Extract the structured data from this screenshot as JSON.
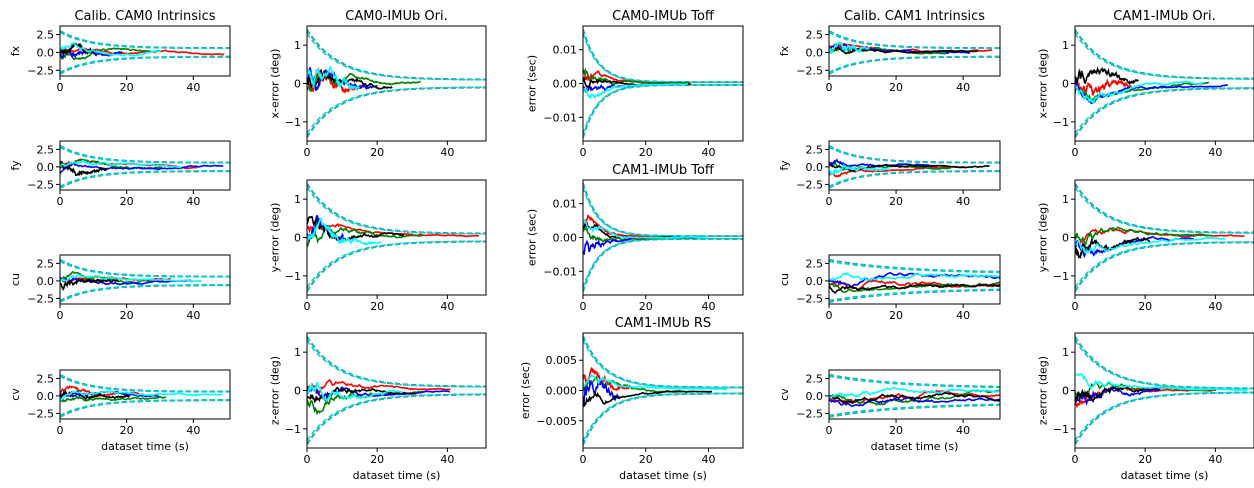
{
  "colors": {
    "bound_outer": "#00ced1",
    "bound_inner": "#000000",
    "series": [
      "#ff0000",
      "#008000",
      "#0000ff",
      "#000000",
      "#00ffff"
    ]
  },
  "chart_data": [
    {
      "id": "c0_r0",
      "type": "line",
      "title": "Calib. CAM0 Intrinsics",
      "ylabel": "fx",
      "xlabel": "",
      "ylim": [
        -3.3,
        3.7
      ],
      "yticks": [
        -2.5,
        0.0,
        2.5
      ],
      "yticklabels": [
        "−2.5",
        "0.0",
        "2.5"
      ],
      "xlim": [
        0,
        51
      ],
      "xticks": [
        0,
        20,
        40
      ],
      "xticklabels": [
        "0",
        "20",
        "40"
      ],
      "bound_start": 3.0,
      "bound_end": 0.6,
      "curve": "pos"
    },
    {
      "id": "c0_r1",
      "type": "line",
      "title": "",
      "ylabel": "fy",
      "xlabel": "",
      "ylim": [
        -3.3,
        3.7
      ],
      "yticks": [
        -2.5,
        0.0,
        2.5
      ],
      "yticklabels": [
        "−2.5",
        "0.0",
        "2.5"
      ],
      "xlim": [
        0,
        51
      ],
      "xticks": [
        0,
        20,
        40
      ],
      "xticklabels": [
        "0",
        "20",
        "40"
      ],
      "bound_start": 3.0,
      "bound_end": 0.6,
      "curve": "pos"
    },
    {
      "id": "c0_r2",
      "type": "line",
      "title": "",
      "ylabel": "cu",
      "xlabel": "",
      "ylim": [
        -3.3,
        3.7
      ],
      "yticks": [
        -2.5,
        0.0,
        2.5
      ],
      "yticklabels": [
        "−2.5",
        "0.0",
        "2.5"
      ],
      "xlim": [
        0,
        51
      ],
      "xticks": [
        0,
        20,
        40
      ],
      "xticklabels": [
        "0",
        "20",
        "40"
      ],
      "bound_start": 3.0,
      "bound_end": 0.6,
      "curve": "pos"
    },
    {
      "id": "c0_r3",
      "type": "line",
      "title": "",
      "ylabel": "cv",
      "xlabel": "dataset time (s)",
      "ylim": [
        -3.3,
        3.7
      ],
      "yticks": [
        -2.5,
        0.0,
        2.5
      ],
      "yticklabels": [
        "−2.5",
        "0.0",
        "2.5"
      ],
      "xlim": [
        0,
        51
      ],
      "xticks": [
        0,
        20,
        40
      ],
      "xticklabels": [
        "0",
        "20",
        "40"
      ],
      "bound_start": 3.0,
      "bound_end": 0.6,
      "curve": "pos"
    },
    {
      "id": "c1_r0",
      "type": "line",
      "title": "CAM0-IMUb Ori.",
      "ylabel": "x-error (deg)",
      "xlabel": "",
      "ylim": [
        -1.5,
        1.5
      ],
      "yticks": [
        -1,
        0,
        1
      ],
      "yticklabels": [
        "−1",
        "0",
        "1"
      ],
      "xlim": [
        0,
        51
      ],
      "xticks": [
        0,
        20,
        40
      ],
      "xticklabels": [
        "0",
        "20",
        "40"
      ],
      "bound_start": 1.4,
      "bound_end": 0.1,
      "curve": "ori"
    },
    {
      "id": "c1_r1",
      "type": "line",
      "title": "",
      "ylabel": "y-error (deg)",
      "xlabel": "",
      "ylim": [
        -1.5,
        1.5
      ],
      "yticks": [
        -1,
        0,
        1
      ],
      "yticklabels": [
        "−1",
        "0",
        "1"
      ],
      "xlim": [
        0,
        51
      ],
      "xticks": [
        0,
        20,
        40
      ],
      "xticklabels": [
        "0",
        "20",
        "40"
      ],
      "bound_start": 1.4,
      "bound_end": 0.1,
      "curve": "ori"
    },
    {
      "id": "c1_r2",
      "type": "line",
      "title": "",
      "ylabel": "z-error (deg)",
      "xlabel": "dataset time (s)",
      "ylim": [
        -1.5,
        1.5
      ],
      "yticks": [
        -1,
        0,
        1
      ],
      "yticklabels": [
        "−1",
        "0",
        "1"
      ],
      "xlim": [
        0,
        51
      ],
      "xticks": [
        0,
        20,
        40
      ],
      "xticklabels": [
        "0",
        "20",
        "40"
      ],
      "bound_start": 1.4,
      "bound_end": 0.1,
      "curve": "ori"
    },
    {
      "id": "c2_r0",
      "type": "line",
      "title": "CAM0-IMUb Toff",
      "ylabel": "error (sec)",
      "xlabel": "",
      "ylim": [
        -0.017,
        0.017
      ],
      "yticks": [
        -0.01,
        0.0,
        0.01
      ],
      "yticklabels": [
        "−0.01",
        "0.00",
        "0.01"
      ],
      "xlim": [
        0,
        51
      ],
      "xticks": [
        0,
        20,
        40
      ],
      "xticklabels": [
        "0",
        "20",
        "40"
      ],
      "bound_start": 0.016,
      "bound_end": 0.0004,
      "curve": "toff"
    },
    {
      "id": "c2_r1",
      "type": "line",
      "title": "CAM1-IMUb Toff",
      "ylabel": "error (sec)",
      "xlabel": "",
      "ylim": [
        -0.017,
        0.017
      ],
      "yticks": [
        -0.01,
        0.0,
        0.01
      ],
      "yticklabels": [
        "−0.01",
        "0.00",
        "0.01"
      ],
      "xlim": [
        0,
        51
      ],
      "xticks": [
        0,
        20,
        40
      ],
      "xticklabels": [
        "0",
        "20",
        "40"
      ],
      "bound_start": 0.016,
      "bound_end": 0.0004,
      "curve": "toff"
    },
    {
      "id": "c2_r2",
      "type": "line",
      "title": "CAM1-IMUb RS",
      "ylabel": "error (sec)",
      "xlabel": "dataset time (s)",
      "ylim": [
        -0.0095,
        0.0095
      ],
      "yticks": [
        -0.005,
        0.0,
        0.005
      ],
      "yticklabels": [
        "−0.005",
        "0.000",
        "0.005"
      ],
      "xlim": [
        0,
        51
      ],
      "xticks": [
        0,
        20,
        40
      ],
      "xticklabels": [
        "0",
        "20",
        "40"
      ],
      "bound_start": 0.009,
      "bound_end": 0.0005,
      "curve": "rs"
    },
    {
      "id": "c3_r0",
      "type": "line",
      "title": "Calib. CAM1 Intrinsics",
      "ylabel": "fx",
      "xlabel": "",
      "ylim": [
        -3.3,
        3.7
      ],
      "yticks": [
        -2.5,
        0.0,
        2.5
      ],
      "yticklabels": [
        "−2.5",
        "0.0",
        "2.5"
      ],
      "xlim": [
        0,
        51
      ],
      "xticks": [
        0,
        20,
        40
      ],
      "xticklabels": [
        "0",
        "20",
        "40"
      ],
      "bound_start": 3.0,
      "bound_end": 0.6,
      "curve": "pos"
    },
    {
      "id": "c3_r1",
      "type": "line",
      "title": "",
      "ylabel": "fy",
      "xlabel": "",
      "ylim": [
        -3.3,
        3.7
      ],
      "yticks": [
        -2.5,
        0.0,
        2.5
      ],
      "yticklabels": [
        "−2.5",
        "0.0",
        "2.5"
      ],
      "xlim": [
        0,
        51
      ],
      "xticks": [
        0,
        20,
        40
      ],
      "xticklabels": [
        "0",
        "20",
        "40"
      ],
      "bound_start": 3.0,
      "bound_end": 0.6,
      "curve": "pos"
    },
    {
      "id": "c3_r2",
      "type": "line",
      "title": "",
      "ylabel": "cu",
      "xlabel": "",
      "ylim": [
        -3.3,
        3.7
      ],
      "yticks": [
        -2.5,
        0.0,
        2.5
      ],
      "yticklabels": [
        "−2.5",
        "0.0",
        "2.5"
      ],
      "xlim": [
        0,
        51
      ],
      "xticks": [
        0,
        20,
        40
      ],
      "xticklabels": [
        "0",
        "20",
        "40"
      ],
      "bound_start": 3.0,
      "bound_end": 1.1,
      "curve": "slow"
    },
    {
      "id": "c3_r3",
      "type": "line",
      "title": "",
      "ylabel": "cv",
      "xlabel": "dataset time (s)",
      "ylim": [
        -3.3,
        3.7
      ],
      "yticks": [
        -2.5,
        0.0,
        2.5
      ],
      "yticklabels": [
        "−2.5",
        "0.0",
        "2.5"
      ],
      "xlim": [
        0,
        51
      ],
      "xticks": [
        0,
        20,
        40
      ],
      "xticklabels": [
        "0",
        "20",
        "40"
      ],
      "bound_start": 3.0,
      "bound_end": 1.1,
      "curve": "slow"
    },
    {
      "id": "c4_r0",
      "type": "line",
      "title": "CAM1-IMUb Ori.",
      "ylabel": "x-error (deg)",
      "xlabel": "",
      "ylim": [
        -1.5,
        1.5
      ],
      "yticks": [
        -1,
        0,
        1
      ],
      "yticklabels": [
        "−1",
        "0",
        "1"
      ],
      "xlim": [
        0,
        51
      ],
      "xticks": [
        0,
        20,
        40
      ],
      "xticklabels": [
        "0",
        "20",
        "40"
      ],
      "bound_start": 1.4,
      "bound_end": 0.12,
      "curve": "ori"
    },
    {
      "id": "c4_r1",
      "type": "line",
      "title": "",
      "ylabel": "y-error (deg)",
      "xlabel": "",
      "ylim": [
        -1.5,
        1.5
      ],
      "yticks": [
        -1,
        0,
        1
      ],
      "yticklabels": [
        "−1",
        "0",
        "1"
      ],
      "xlim": [
        0,
        51
      ],
      "xticks": [
        0,
        20,
        40
      ],
      "xticklabels": [
        "0",
        "20",
        "40"
      ],
      "bound_start": 1.4,
      "bound_end": 0.12,
      "curve": "ori"
    },
    {
      "id": "c4_r2",
      "type": "line",
      "title": "",
      "ylabel": "z-error (deg)",
      "xlabel": "dataset time (s)",
      "ylim": [
        -1.5,
        1.5
      ],
      "yticks": [
        -1,
        0,
        1
      ],
      "yticklabels": [
        "−1",
        "0",
        "1"
      ],
      "xlim": [
        0,
        51
      ],
      "xticks": [
        0,
        20,
        40
      ],
      "xticklabels": [
        "0",
        "20",
        "40"
      ],
      "bound_start": 1.4,
      "bound_end": 0.05,
      "curve": "ori"
    }
  ]
}
